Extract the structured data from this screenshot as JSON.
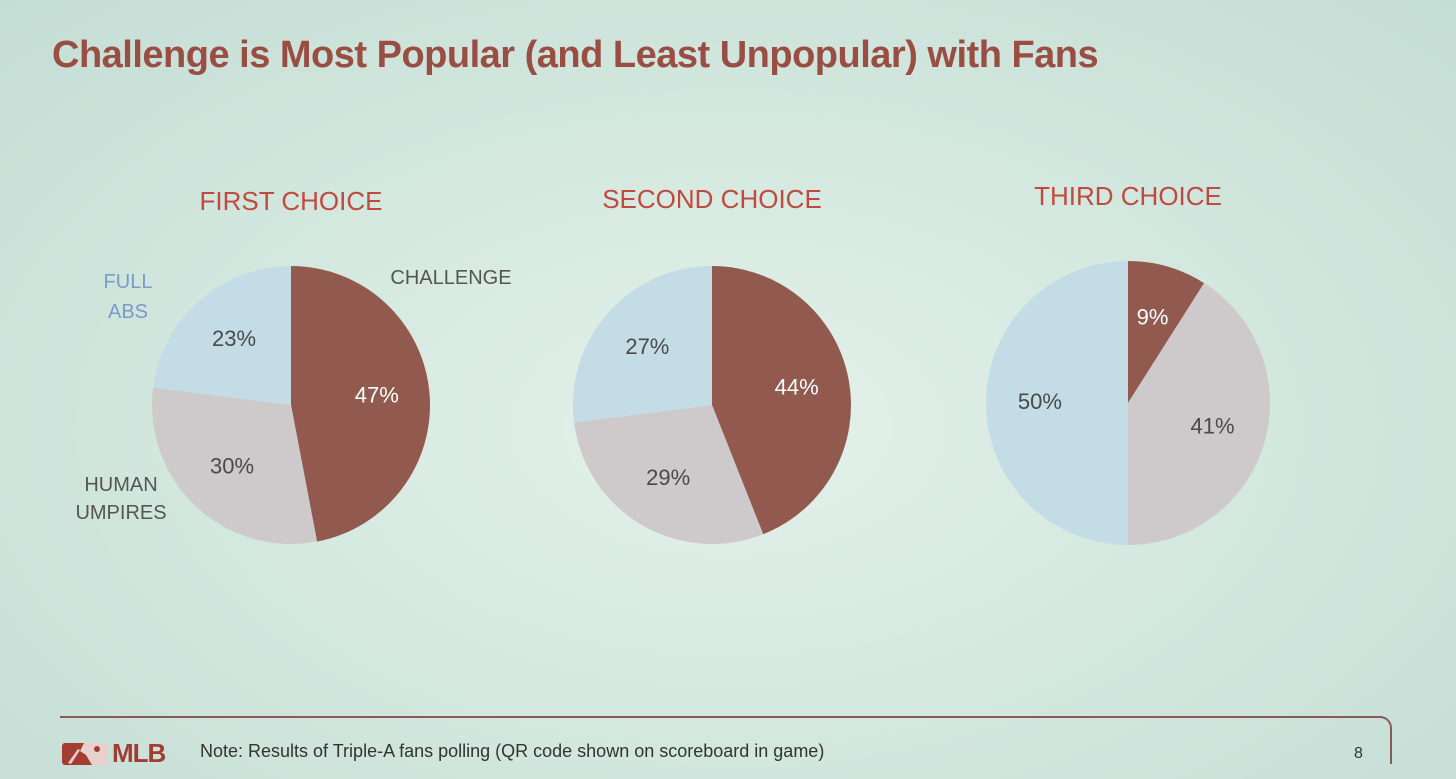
{
  "title": "Challenge is Most Popular (and Least Unpopular) with Fans",
  "colors": {
    "challenge": "#925a4e",
    "full_abs": "#c4dce5",
    "human_umpires": "#cec9ca",
    "title": "#9a4d42",
    "chart_title": "#c04a3e",
    "label_full_abs": "#7a9ac7",
    "label_challenge": "#555555",
    "label_human_umpires": "#555555"
  },
  "chart_data": [
    {
      "type": "pie",
      "title": "FIRST CHOICE",
      "slices": [
        {
          "category": "CHALLENGE",
          "value": 47,
          "label": "47%",
          "color": "#925a4e"
        },
        {
          "category": "HUMAN UMPIRES",
          "value": 30,
          "label": "30%",
          "color": "#cec9ca"
        },
        {
          "category": "FULL ABS",
          "value": 23,
          "label": "23%",
          "color": "#c4dce5"
        }
      ],
      "category_labels": [
        {
          "lines": [
            "CHALLENGE"
          ],
          "color": "#555555"
        },
        {
          "lines": [
            "HUMAN",
            "UMPIRES"
          ],
          "color": "#555555"
        },
        {
          "lines": [
            "FULL",
            "ABS"
          ],
          "color": "#7a9ac7"
        }
      ]
    },
    {
      "type": "pie",
      "title": "SECOND CHOICE",
      "slices": [
        {
          "category": "CHALLENGE",
          "value": 44,
          "label": "44%",
          "color": "#925a4e"
        },
        {
          "category": "HUMAN UMPIRES",
          "value": 29,
          "label": "29%",
          "color": "#cec9ca"
        },
        {
          "category": "FULL ABS",
          "value": 27,
          "label": "27%",
          "color": "#c4dce5"
        }
      ]
    },
    {
      "type": "pie",
      "title": "THIRD CHOICE",
      "slices": [
        {
          "category": "CHALLENGE",
          "value": 9,
          "label": "9%",
          "color": "#925a4e"
        },
        {
          "category": "HUMAN UMPIRES",
          "value": 41,
          "label": "41%",
          "color": "#cec9ca"
        },
        {
          "category": "FULL ABS",
          "value": 50,
          "label": "50%",
          "color": "#c4dce5"
        }
      ]
    }
  ],
  "footer": {
    "logo_text": "MLB",
    "note": "Note: Results of Triple-A fans polling (QR code shown on scoreboard in game)",
    "page_number": "8"
  }
}
